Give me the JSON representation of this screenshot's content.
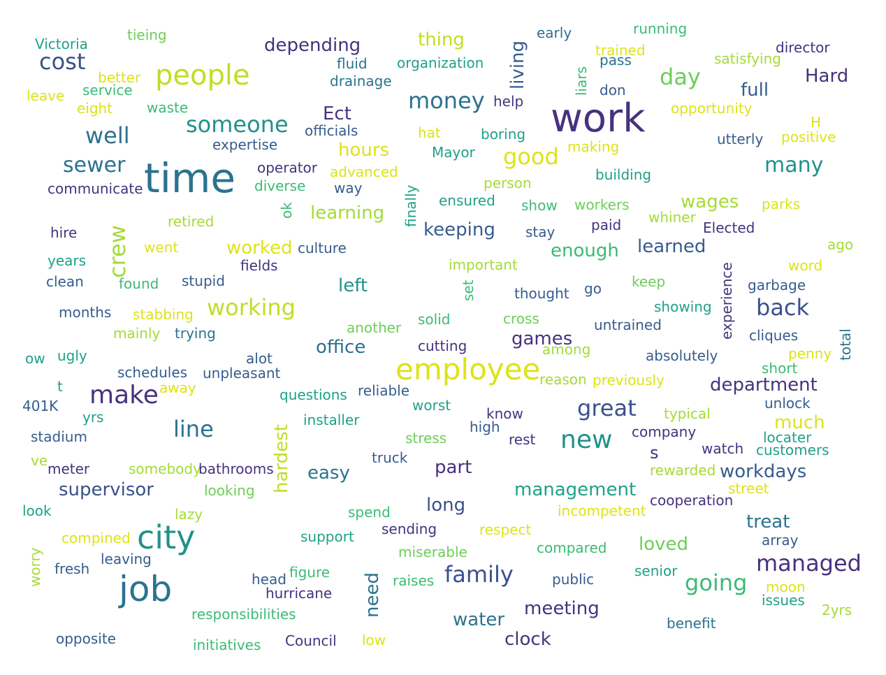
{
  "palette": {
    "dark_purple": "#46327e",
    "indigo": "#3b518b",
    "slate_blue": "#365c8d",
    "teal_blue": "#2c728e",
    "teal": "#21918c",
    "sea_green": "#1fa187",
    "green": "#3bbb75",
    "light_green": "#6ece58",
    "lime": "#a5db36",
    "yellow": "#dde318",
    "deep_purple": "#440154"
  },
  "words": [
    {
      "text": "work",
      "color": "#46327e"
    },
    {
      "text": "time",
      "color": "#2c728e"
    },
    {
      "text": "job",
      "color": "#2c728e"
    },
    {
      "text": "city",
      "color": "#21918c"
    },
    {
      "text": "employee",
      "color": "#dde318"
    },
    {
      "text": "people",
      "color": "#bddf26"
    },
    {
      "text": "new",
      "color": "#21918c"
    },
    {
      "text": "make",
      "color": "#46327e"
    },
    {
      "text": "someone",
      "color": "#21918c"
    },
    {
      "text": "well",
      "color": "#2c728e"
    },
    {
      "text": "sewer",
      "color": "#2c728e"
    },
    {
      "text": "cost",
      "color": "#3b518b"
    },
    {
      "text": "money",
      "color": "#2c728e"
    },
    {
      "text": "day",
      "color": "#6ece58"
    },
    {
      "text": "good",
      "color": "#dde318"
    },
    {
      "text": "many",
      "color": "#21918c"
    },
    {
      "text": "crew",
      "color": "#a5db36"
    },
    {
      "text": "line",
      "color": "#2c728e"
    },
    {
      "text": "great",
      "color": "#3b518b"
    },
    {
      "text": "family",
      "color": "#3b518b"
    },
    {
      "text": "managed",
      "color": "#46327e"
    },
    {
      "text": "back",
      "color": "#3b518b"
    },
    {
      "text": "going",
      "color": "#3bbb75"
    },
    {
      "text": "working",
      "color": "#bddf26"
    },
    {
      "text": "depending",
      "color": "#46327e"
    },
    {
      "text": "thing",
      "color": "#bddf26"
    },
    {
      "text": "living",
      "color": "#365c8d"
    },
    {
      "text": "hours",
      "color": "#dde318"
    },
    {
      "text": "full",
      "color": "#365c8d"
    },
    {
      "text": "Hard",
      "color": "#46327e"
    },
    {
      "text": "Ect",
      "color": "#46327e"
    },
    {
      "text": "learning",
      "color": "#a5db36"
    },
    {
      "text": "keeping",
      "color": "#365c8d"
    },
    {
      "text": "enough",
      "color": "#3bbb75"
    },
    {
      "text": "learned",
      "color": "#365c8d"
    },
    {
      "text": "wages",
      "color": "#a5db36"
    },
    {
      "text": "worked",
      "color": "#dde318"
    },
    {
      "text": "left",
      "color": "#21918c"
    },
    {
      "text": "office",
      "color": "#2c728e"
    },
    {
      "text": "games",
      "color": "#46327e"
    },
    {
      "text": "department",
      "color": "#46327e"
    },
    {
      "text": "much",
      "color": "#dde318"
    },
    {
      "text": "workdays",
      "color": "#365c8d"
    },
    {
      "text": "hardest",
      "color": "#bddf26"
    },
    {
      "text": "part",
      "color": "#46327e"
    },
    {
      "text": "easy",
      "color": "#2c728e"
    },
    {
      "text": "supervisor",
      "color": "#3b518b"
    },
    {
      "text": "management",
      "color": "#1fa187"
    },
    {
      "text": "long",
      "color": "#3b518b"
    },
    {
      "text": "treat",
      "color": "#2c728e"
    },
    {
      "text": "loved",
      "color": "#6ece58"
    },
    {
      "text": "meeting",
      "color": "#46327e"
    },
    {
      "text": "water",
      "color": "#2c728e"
    },
    {
      "text": "clock",
      "color": "#46327e"
    },
    {
      "text": "need",
      "color": "#2c728e"
    },
    {
      "text": "s",
      "color": "#46327e"
    },
    {
      "text": "Victoria",
      "color": "#1fa187"
    },
    {
      "text": "tieing",
      "color": "#6ece58"
    },
    {
      "text": "better",
      "color": "#dde318"
    },
    {
      "text": "service",
      "color": "#3bbb75"
    },
    {
      "text": "leave",
      "color": "#dde318"
    },
    {
      "text": "eight",
      "color": "#dde318"
    },
    {
      "text": "waste",
      "color": "#3bbb75"
    },
    {
      "text": "fluid",
      "color": "#2c728e"
    },
    {
      "text": "organization",
      "color": "#1fa187"
    },
    {
      "text": "drainage",
      "color": "#2c728e"
    },
    {
      "text": "early",
      "color": "#2c728e"
    },
    {
      "text": "running",
      "color": "#3bbb75"
    },
    {
      "text": "trained",
      "color": "#dde318"
    },
    {
      "text": "pass",
      "color": "#2c728e"
    },
    {
      "text": "liars",
      "color": "#3bbb75"
    },
    {
      "text": "director",
      "color": "#46327e"
    },
    {
      "text": "satisfying",
      "color": "#a5db36"
    },
    {
      "text": "don",
      "color": "#365c8d"
    },
    {
      "text": "help",
      "color": "#46327e"
    },
    {
      "text": "opportunity",
      "color": "#dde318"
    },
    {
      "text": "H",
      "color": "#dde318"
    },
    {
      "text": "officials",
      "color": "#365c8d"
    },
    {
      "text": "hat",
      "color": "#dde318"
    },
    {
      "text": "boring",
      "color": "#1fa187"
    },
    {
      "text": "utterly",
      "color": "#365c8d"
    },
    {
      "text": "positive",
      "color": "#dde318"
    },
    {
      "text": "expertise",
      "color": "#365c8d"
    },
    {
      "text": "Mayor",
      "color": "#1fa187"
    },
    {
      "text": "making",
      "color": "#dde318"
    },
    {
      "text": "operator",
      "color": "#46327e"
    },
    {
      "text": "advanced",
      "color": "#dde318"
    },
    {
      "text": "finally",
      "color": "#1fa187"
    },
    {
      "text": "building",
      "color": "#1fa187"
    },
    {
      "text": "communicate",
      "color": "#46327e"
    },
    {
      "text": "diverse",
      "color": "#3bbb75"
    },
    {
      "text": "way",
      "color": "#365c8d"
    },
    {
      "text": "person",
      "color": "#a5db36"
    },
    {
      "text": "ok",
      "color": "#3bbb75"
    },
    {
      "text": "ensured",
      "color": "#1fa187"
    },
    {
      "text": "show",
      "color": "#3bbb75"
    },
    {
      "text": "workers",
      "color": "#6ece58"
    },
    {
      "text": "parks",
      "color": "#dde318"
    },
    {
      "text": "retired",
      "color": "#a5db36"
    },
    {
      "text": "paid",
      "color": "#46327e"
    },
    {
      "text": "whiner",
      "color": "#a5db36"
    },
    {
      "text": "stay",
      "color": "#365c8d"
    },
    {
      "text": "Elected",
      "color": "#46327e"
    },
    {
      "text": "hire",
      "color": "#46327e"
    },
    {
      "text": "went",
      "color": "#dde318"
    },
    {
      "text": "culture",
      "color": "#365c8d"
    },
    {
      "text": "ago",
      "color": "#a5db36"
    },
    {
      "text": "years",
      "color": "#1fa187"
    },
    {
      "text": "fields",
      "color": "#46327e"
    },
    {
      "text": "important",
      "color": "#a5db36"
    },
    {
      "text": "word",
      "color": "#dde318"
    },
    {
      "text": "experience",
      "color": "#46327e"
    },
    {
      "text": "clean",
      "color": "#365c8d"
    },
    {
      "text": "found",
      "color": "#3bbb75"
    },
    {
      "text": "stupid",
      "color": "#365c8d"
    },
    {
      "text": "set",
      "color": "#3bbb75"
    },
    {
      "text": "thought",
      "color": "#365c8d"
    },
    {
      "text": "go",
      "color": "#365c8d"
    },
    {
      "text": "keep",
      "color": "#6ece58"
    },
    {
      "text": "garbage",
      "color": "#365c8d"
    },
    {
      "text": "showing",
      "color": "#1fa187"
    },
    {
      "text": "months",
      "color": "#365c8d"
    },
    {
      "text": "stabbing",
      "color": "#dde318"
    },
    {
      "text": "solid",
      "color": "#3bbb75"
    },
    {
      "text": "cross",
      "color": "#6ece58"
    },
    {
      "text": "untrained",
      "color": "#365c8d"
    },
    {
      "text": "mainly",
      "color": "#a5db36"
    },
    {
      "text": "trying",
      "color": "#2c728e"
    },
    {
      "text": "another",
      "color": "#6ece58"
    },
    {
      "text": "cliques",
      "color": "#365c8d"
    },
    {
      "text": "total",
      "color": "#2c728e"
    },
    {
      "text": "ow",
      "color": "#1fa187"
    },
    {
      "text": "ugly",
      "color": "#1fa187"
    },
    {
      "text": "alot",
      "color": "#365c8d"
    },
    {
      "text": "cutting",
      "color": "#46327e"
    },
    {
      "text": "among",
      "color": "#a5db36"
    },
    {
      "text": "absolutely",
      "color": "#365c8d"
    },
    {
      "text": "penny",
      "color": "#dde318"
    },
    {
      "text": "schedules",
      "color": "#365c8d"
    },
    {
      "text": "unpleasant",
      "color": "#365c8d"
    },
    {
      "text": "short",
      "color": "#3bbb75"
    },
    {
      "text": "t",
      "color": "#1fa187"
    },
    {
      "text": "away",
      "color": "#dde318"
    },
    {
      "text": "reason",
      "color": "#a5db36"
    },
    {
      "text": "previously",
      "color": "#dde318"
    },
    {
      "text": "questions",
      "color": "#1fa187"
    },
    {
      "text": "reliable",
      "color": "#365c8d"
    },
    {
      "text": "401K",
      "color": "#365c8d"
    },
    {
      "text": "worst",
      "color": "#1fa187"
    },
    {
      "text": "unlock",
      "color": "#365c8d"
    },
    {
      "text": "yrs",
      "color": "#1fa187"
    },
    {
      "text": "installer",
      "color": "#1fa187"
    },
    {
      "text": "know",
      "color": "#46327e"
    },
    {
      "text": "typical",
      "color": "#a5db36"
    },
    {
      "text": "high",
      "color": "#365c8d"
    },
    {
      "text": "stadium",
      "color": "#365c8d"
    },
    {
      "text": "stress",
      "color": "#6ece58"
    },
    {
      "text": "rest",
      "color": "#46327e"
    },
    {
      "text": "company",
      "color": "#46327e"
    },
    {
      "text": "locater",
      "color": "#1fa187"
    },
    {
      "text": "watch",
      "color": "#46327e"
    },
    {
      "text": "customers",
      "color": "#1fa187"
    },
    {
      "text": "ve",
      "color": "#a5db36"
    },
    {
      "text": "truck",
      "color": "#365c8d"
    },
    {
      "text": "meter",
      "color": "#46327e"
    },
    {
      "text": "somebody",
      "color": "#a5db36"
    },
    {
      "text": "bathrooms",
      "color": "#46327e"
    },
    {
      "text": "rewarded",
      "color": "#a5db36"
    },
    {
      "text": "street",
      "color": "#dde318"
    },
    {
      "text": "looking",
      "color": "#6ece58"
    },
    {
      "text": "look",
      "color": "#1fa187"
    },
    {
      "text": "lazy",
      "color": "#a5db36"
    },
    {
      "text": "spend",
      "color": "#3bbb75"
    },
    {
      "text": "incompetent",
      "color": "#dde318"
    },
    {
      "text": "cooperation",
      "color": "#46327e"
    },
    {
      "text": "sending",
      "color": "#46327e"
    },
    {
      "text": "respect",
      "color": "#dde318"
    },
    {
      "text": "support",
      "color": "#1fa187"
    },
    {
      "text": "compined",
      "color": "#dde318"
    },
    {
      "text": "array",
      "color": "#365c8d"
    },
    {
      "text": "worry",
      "color": "#a5db36"
    },
    {
      "text": "compared",
      "color": "#3bbb75"
    },
    {
      "text": "leaving",
      "color": "#365c8d"
    },
    {
      "text": "miserable",
      "color": "#6ece58"
    },
    {
      "text": "fresh",
      "color": "#365c8d"
    },
    {
      "text": "figure",
      "color": "#3bbb75"
    },
    {
      "text": "senior",
      "color": "#1fa187"
    },
    {
      "text": "head",
      "color": "#365c8d"
    },
    {
      "text": "raises",
      "color": "#3bbb75"
    },
    {
      "text": "public",
      "color": "#365c8d"
    },
    {
      "text": "moon",
      "color": "#dde318"
    },
    {
      "text": "hurricane",
      "color": "#46327e"
    },
    {
      "text": "issues",
      "color": "#1fa187"
    },
    {
      "text": "2yrs",
      "color": "#a5db36"
    },
    {
      "text": "responsibilities",
      "color": "#3bbb75"
    },
    {
      "text": "benefit",
      "color": "#2c728e"
    },
    {
      "text": "opposite",
      "color": "#365c8d"
    },
    {
      "text": "initiatives",
      "color": "#3bbb75"
    },
    {
      "text": "Council",
      "color": "#46327e"
    },
    {
      "text": "low",
      "color": "#dde318"
    }
  ]
}
